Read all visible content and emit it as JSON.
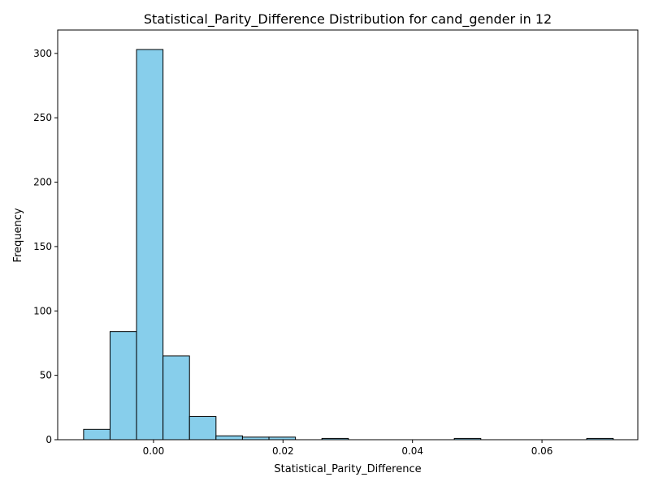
{
  "chart_data": {
    "type": "bar",
    "title": "Statistical_Parity_Difference Distribution for cand_gender in 12",
    "xlabel": "Statistical_Parity_Difference",
    "ylabel": "Frequency",
    "xlim": [
      -0.0148,
      0.0748
    ],
    "ylim": [
      0,
      318.15
    ],
    "x_ticks": [
      0.0,
      0.02,
      0.04,
      0.06
    ],
    "x_tick_labels": [
      "0.00",
      "0.02",
      "0.04",
      "0.06"
    ],
    "y_ticks": [
      0,
      50,
      100,
      150,
      200,
      250,
      300
    ],
    "y_tick_labels": [
      "0",
      "50",
      "100",
      "150",
      "200",
      "250",
      "300"
    ],
    "bin_start": -0.0108,
    "bin_width": 0.00409,
    "values": [
      8,
      84,
      303,
      65,
      18,
      3,
      2,
      2,
      0,
      1,
      0,
      0,
      0,
      0,
      1,
      0,
      0,
      0,
      0,
      1
    ],
    "grid": false,
    "bar_color": "#87ceeb",
    "edge_color": "#000000"
  }
}
